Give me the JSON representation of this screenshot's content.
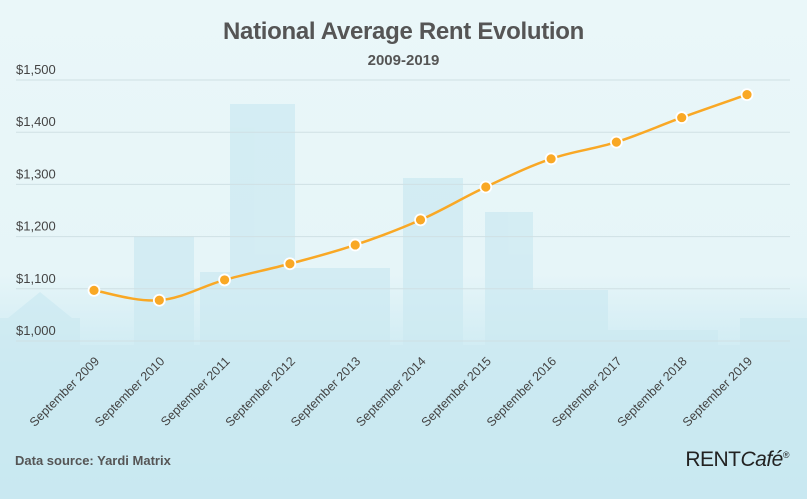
{
  "chart_data": {
    "type": "line",
    "title": "National Average Rent Evolution",
    "subtitle": "2009-2019",
    "xlabel": "",
    "ylabel": "",
    "categories": [
      "September 2009",
      "September 2010",
      "September 2011",
      "September 2012",
      "September 2013",
      "September 2014",
      "September 2015",
      "September 2016",
      "September 2017",
      "September 2018",
      "September 2019"
    ],
    "series": [
      {
        "name": "National Average Rent",
        "values": [
          1097,
          1078,
          1117,
          1148,
          1184,
          1232,
          1295,
          1349,
          1381,
          1428,
          1472
        ],
        "color": "#f9a825"
      }
    ],
    "ylim": [
      1000,
      1500
    ],
    "yticks": [
      1000,
      1100,
      1200,
      1300,
      1400,
      1500
    ],
    "ytick_labels": [
      "$1,000",
      "$1,100",
      "$1,200",
      "$1,300",
      "$1,400",
      "$1,500"
    ],
    "grid": true,
    "legend": "none"
  },
  "footer": {
    "source": "Data source: Yardi Matrix",
    "logo_rent": "RENT",
    "logo_cafe": "Café",
    "logo_mark": "®"
  },
  "colors": {
    "line": "#f9a825",
    "marker_stroke": "#ffffff",
    "grid": "#cfe0e4",
    "text": "#555555",
    "skyline": "#cbe8f0"
  }
}
